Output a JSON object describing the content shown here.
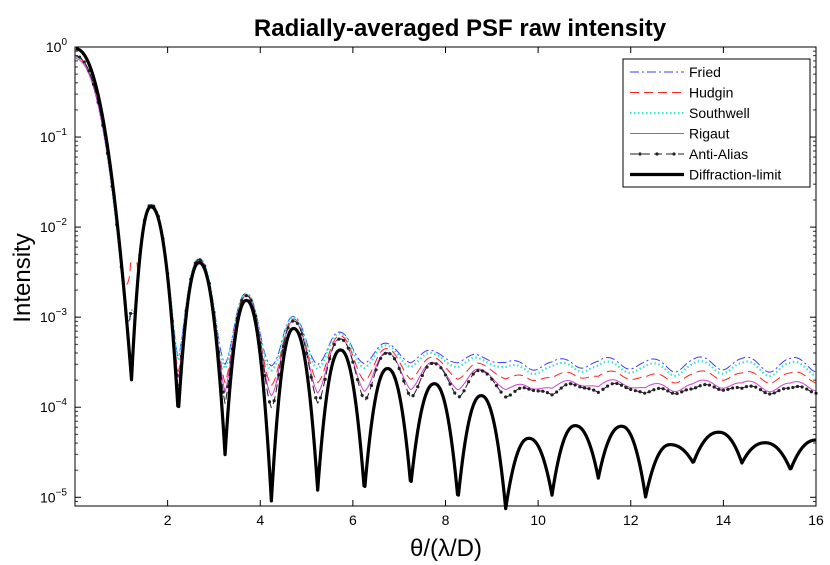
{
  "chart_data": {
    "type": "line",
    "title": "Radially-averaged PSF raw intensity",
    "xlabel": "θ/(λ/D)",
    "ylabel": "Intensity",
    "yscale": "log",
    "xlim": [
      0,
      16
    ],
    "ylim": [
      8e-06,
      1.0
    ],
    "xticks": [
      2,
      4,
      6,
      8,
      10,
      12,
      14,
      16
    ],
    "yticks": [
      {
        "value": 1.0,
        "base": "10",
        "exp": "0"
      },
      {
        "value": 0.1,
        "base": "10",
        "exp": "−1"
      },
      {
        "value": 0.01,
        "base": "10",
        "exp": "−2"
      },
      {
        "value": 0.001,
        "base": "10",
        "exp": "−3"
      },
      {
        "value": 0.0001,
        "base": "10",
        "exp": "−4"
      },
      {
        "value": 1e-05,
        "base": "10",
        "exp": "−5"
      }
    ],
    "legend_position": "top-right",
    "diffraction": {
      "peaks": [
        {
          "x": 0.0,
          "y": 1.0
        },
        {
          "x": 1.64,
          "y": 0.0175
        },
        {
          "x": 2.68,
          "y": 0.0042
        },
        {
          "x": 3.7,
          "y": 0.0016
        },
        {
          "x": 4.72,
          "y": 0.00078
        },
        {
          "x": 5.73,
          "y": 0.00045
        },
        {
          "x": 6.75,
          "y": 0.00028
        },
        {
          "x": 7.76,
          "y": 0.00019
        },
        {
          "x": 8.77,
          "y": 0.00014
        },
        {
          "x": 9.8,
          "y": 4.7e-05
        },
        {
          "x": 10.8,
          "y": 6.5e-05
        },
        {
          "x": 11.8,
          "y": 6.4e-05
        },
        {
          "x": 12.85,
          "y": 4e-05
        },
        {
          "x": 13.9,
          "y": 5.5e-05
        },
        {
          "x": 14.9,
          "y": 4.2e-05
        },
        {
          "x": 16.0,
          "y": 4.5e-05
        }
      ],
      "nulls": [
        {
          "x": 1.22,
          "y": 0.00021
        },
        {
          "x": 2.23,
          "y": 8.8e-05
        },
        {
          "x": 3.24,
          "y": 3.1e-05
        },
        {
          "x": 4.24,
          "y": 9.5e-06
        },
        {
          "x": 5.24,
          "y": 1.25e-05
        },
        {
          "x": 6.25,
          "y": 1.2e-05
        },
        {
          "x": 7.25,
          "y": 1.4e-05
        },
        {
          "x": 8.27,
          "y": 9.8e-06
        },
        {
          "x": 9.3,
          "y": 7.8e-06
        },
        {
          "x": 10.3,
          "y": 1.1e-05
        },
        {
          "x": 11.3,
          "y": 1.7e-05
        },
        {
          "x": 12.32,
          "y": 1.05e-05
        },
        {
          "x": 13.35,
          "y": 2.5e-05
        },
        {
          "x": 14.4,
          "y": 2.5e-05
        },
        {
          "x": 15.45,
          "y": 2.1e-05
        }
      ]
    },
    "series": [
      {
        "name": "Fried",
        "color": "#3b3bff",
        "dash": "9 3 2 3",
        "width": 1,
        "markers": false,
        "start": 0.78,
        "first_null": 0.0011,
        "floor": 0.00035,
        "ripple": 0.3,
        "ripple_decay": 0.8
      },
      {
        "name": "Hudgin",
        "color": "#ff2020",
        "dash": "9 5",
        "width": 1,
        "markers": false,
        "start": 0.78,
        "first_null": 0.004,
        "floor": 0.00024,
        "ripple": 0.45,
        "ripple_decay": 0.55
      },
      {
        "name": "Southwell",
        "color": "#33e6d4",
        "dash": "1.5 2.5",
        "width": 2.2,
        "markers": false,
        "start": 0.76,
        "first_null": 0.0012,
        "floor": 0.00031,
        "ripple": 0.3,
        "ripple_decay": 0.75
      },
      {
        "name": "Rigaut",
        "color": "#d040d0",
        "dash": "",
        "width": 1,
        "markers": false,
        "start": 0.74,
        "first_null": 0.0011,
        "floor": 0.00018,
        "ripple": 0.45,
        "ripple_decay": 0.45
      },
      {
        "name": "Anti-Alias",
        "color": "#222222",
        "dash": "8 4",
        "width": 1,
        "markers": true,
        "start": 0.8,
        "first_null": 0.0011,
        "floor": 0.00016,
        "ripple": 0.65,
        "ripple_decay": 0.35
      },
      {
        "name": "Diffraction-limit",
        "color": "#000000",
        "dash": "",
        "width": 3.2,
        "markers": false
      }
    ]
  }
}
